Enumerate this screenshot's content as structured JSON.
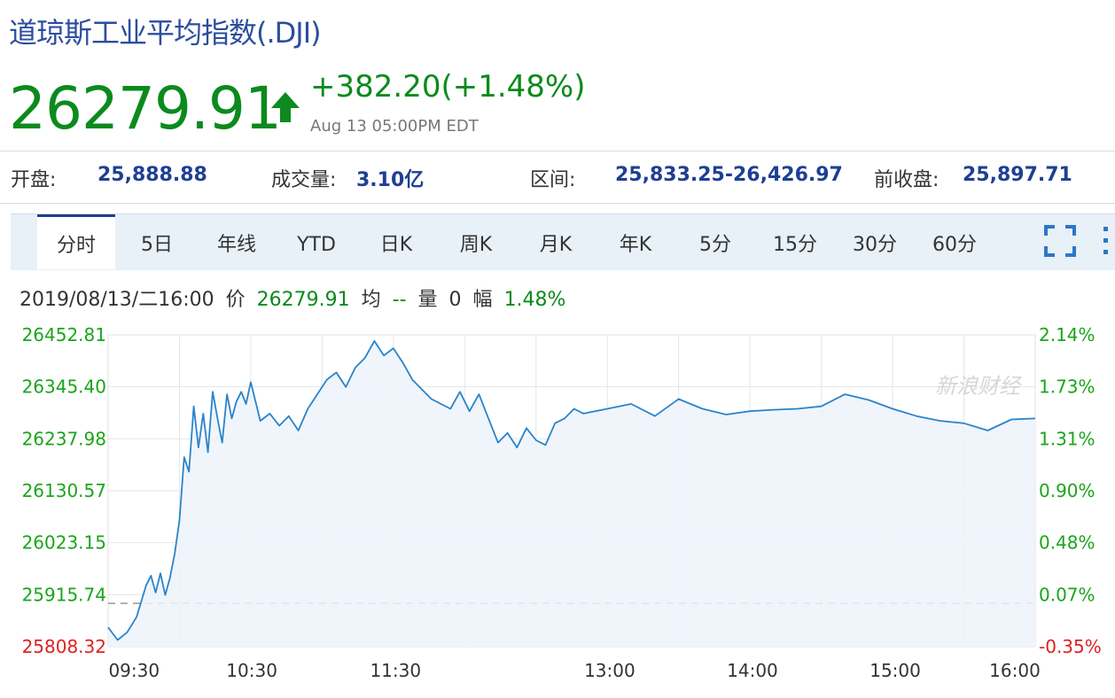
{
  "header": {
    "title": "道琼斯工业平均指数(.DJI)",
    "price": "26279.91",
    "change": "+382.20(+1.48%)",
    "timestamp": "Aug 13 05:00PM EDT",
    "up_color": "#0b8a1d",
    "arrow_icon": "up-arrow-icon"
  },
  "stats": {
    "open_label": "开盘:",
    "open_value": "25,888.88",
    "volume_label": "成交量:",
    "volume_value": "3.10亿",
    "range_label": "区间:",
    "range_value": "25,833.25-26,426.97",
    "prev_close_label": "前收盘:",
    "prev_close_value": "25,897.71"
  },
  "tabs": [
    {
      "label": "分时",
      "active": true
    },
    {
      "label": "5日"
    },
    {
      "label": "年线"
    },
    {
      "label": "YTD"
    },
    {
      "label": "日K"
    },
    {
      "label": "周K"
    },
    {
      "label": "月K"
    },
    {
      "label": "年K"
    },
    {
      "label": "5分"
    },
    {
      "label": "15分"
    },
    {
      "label": "30分"
    },
    {
      "label": "60分"
    }
  ],
  "toolbar": {
    "fullscreen_icon": "fullscreen-icon",
    "more_icon": "more-icon"
  },
  "info": {
    "datetime": "2019/08/13/二16:00",
    "price_label": "价",
    "price_value": "26279.91",
    "avg_label": "均",
    "avg_value": "--",
    "vol_label": "量",
    "vol_value": "0",
    "amp_label": "幅",
    "amp_value": "1.48%"
  },
  "chart_data": {
    "type": "area",
    "x_ticks": [
      "09:30",
      "10:30",
      "11:30",
      "13:00",
      "14:00",
      "15:00",
      "16:00"
    ],
    "y_ticks_left": [
      "26452.81",
      "26345.40",
      "26237.98",
      "26130.57",
      "26023.15",
      "25915.74",
      "25808.32"
    ],
    "y_ticks_right": [
      "2.14%",
      "1.73%",
      "1.31%",
      "0.90%",
      "0.48%",
      "0.07%",
      "-0.35%"
    ],
    "ylim": [
      25808.32,
      26452.81
    ],
    "prev_close": 25897.71,
    "watermark": "新浪财经",
    "line_color": "#2a84c9",
    "up_color": "#1aa51a",
    "down_color": "#e02020",
    "x": [
      0,
      4,
      8,
      12,
      16,
      18,
      20,
      22,
      24,
      26,
      28,
      30,
      32,
      34,
      36,
      38,
      40,
      42,
      44,
      46,
      48,
      50,
      52,
      54,
      56,
      58,
      60,
      64,
      68,
      72,
      76,
      80,
      84,
      88,
      92,
      96,
      100,
      104,
      108,
      112,
      116,
      120,
      124,
      128,
      132,
      136,
      140,
      144,
      148,
      152,
      156,
      160,
      164,
      168,
      172,
      176,
      180,
      184,
      188,
      192,
      196,
      200,
      210,
      220,
      230,
      240,
      250,
      260,
      270,
      280,
      290,
      300,
      310,
      320,
      330,
      340,
      350,
      360,
      370,
      380,
      390
    ],
    "y": [
      25848,
      25822,
      25838,
      25870,
      25935,
      25955,
      25920,
      25960,
      25915,
      25950,
      26000,
      26070,
      26200,
      26170,
      26305,
      26220,
      26290,
      26210,
      26335,
      26280,
      26230,
      26330,
      26280,
      26315,
      26335,
      26310,
      26355,
      26275,
      26290,
      26265,
      26285,
      26255,
      26300,
      26330,
      26360,
      26375,
      26345,
      26385,
      26405,
      26440,
      26410,
      26425,
      26395,
      26360,
      26340,
      26320,
      26310,
      26300,
      26335,
      26295,
      26330,
      26280,
      26230,
      26250,
      26220,
      26260,
      26235,
      26225,
      26270,
      26280,
      26300,
      26290,
      26300,
      26310,
      26285,
      26320,
      26300,
      26288,
      26295,
      26298,
      26300,
      26305,
      26330,
      26318,
      26300,
      26285,
      26275,
      26270,
      26255,
      26278,
      26279.91
    ]
  }
}
